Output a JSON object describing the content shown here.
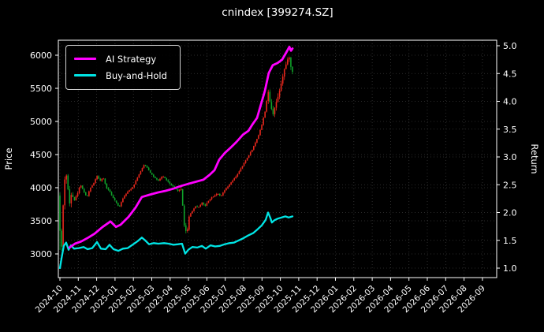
{
  "title": "cnindex [399274.SZ]",
  "legend": {
    "items": [
      {
        "label": "AI Strategy",
        "color": "#ff00ff"
      },
      {
        "label": "Buy-and-Hold",
        "color": "#00e5e5"
      }
    ]
  },
  "chart_data": {
    "type": "mixed",
    "title": "cnindex [399274.SZ]",
    "background": "#000000",
    "text_color": "#ffffff",
    "grid": true,
    "x_unit": "months since 2024-10",
    "x_axis": {
      "tick_labels": [
        "2024-10",
        "2024-11",
        "2024-12",
        "2025-01",
        "2025-02",
        "2025-03",
        "2025-04",
        "2025-05",
        "2025-06",
        "2025-07",
        "2025-08",
        "2025-09",
        "2025-10",
        "2025-11",
        "2025-12",
        "2026-01",
        "2026-02",
        "2026-03",
        "2026-04",
        "2026-05",
        "2026-06",
        "2026-07",
        "2026-08",
        "2026-09"
      ],
      "label_rotation_deg": 45,
      "data_end_x": 12.66
    },
    "left_axis": {
      "label": "Price",
      "ticks": [
        3000,
        3500,
        4000,
        4500,
        5000,
        5500,
        6000
      ],
      "range": [
        2630,
        6225
      ]
    },
    "right_axis": {
      "label": "Return",
      "ticks": [
        1.0,
        1.5,
        2.0,
        2.5,
        3.0,
        3.5,
        4.0,
        4.5,
        5.0
      ],
      "range": [
        0.83,
        5.13
      ]
    },
    "series": [
      {
        "name": "cnindex OHLC",
        "type": "candlestick",
        "axis": "left",
        "up_color": "#e8271c",
        "down_color": "#0fa32a",
        "candle_count": 145,
        "first_candle": {
          "open": 3880,
          "high": 3925,
          "low": 3060,
          "close": 3350
        },
        "close_keypoints": [
          [
            0,
            3350
          ],
          [
            0.09,
            3100
          ],
          [
            0.17,
            3700
          ],
          [
            0.3,
            4300
          ],
          [
            0.39,
            4100
          ],
          [
            0.52,
            3750
          ],
          [
            0.64,
            3950
          ],
          [
            0.77,
            3800
          ],
          [
            0.94,
            3900
          ],
          [
            1.12,
            4050
          ],
          [
            1.29,
            3950
          ],
          [
            1.46,
            3850
          ],
          [
            1.63,
            3980
          ],
          [
            1.8,
            4050
          ],
          [
            2.02,
            4180
          ],
          [
            2.19,
            4100
          ],
          [
            2.36,
            4150
          ],
          [
            2.53,
            4000
          ],
          [
            2.7,
            3950
          ],
          [
            2.88,
            3850
          ],
          [
            3.05,
            3780
          ],
          [
            3.22,
            3700
          ],
          [
            3.39,
            3820
          ],
          [
            3.56,
            3900
          ],
          [
            3.78,
            3960
          ],
          [
            3.99,
            4020
          ],
          [
            4.21,
            4150
          ],
          [
            4.42,
            4260
          ],
          [
            4.59,
            4350
          ],
          [
            4.76,
            4300
          ],
          [
            4.94,
            4220
          ],
          [
            5.15,
            4150
          ],
          [
            5.36,
            4100
          ],
          [
            5.58,
            4180
          ],
          [
            5.79,
            4120
          ],
          [
            6.01,
            4050
          ],
          [
            6.22,
            4000
          ],
          [
            6.44,
            3950
          ],
          [
            6.61,
            3980
          ],
          [
            6.78,
            3400
          ],
          [
            6.91,
            3300
          ],
          [
            7.04,
            3580
          ],
          [
            7.21,
            3650
          ],
          [
            7.38,
            3720
          ],
          [
            7.55,
            3700
          ],
          [
            7.73,
            3780
          ],
          [
            7.9,
            3720
          ],
          [
            8.07,
            3800
          ],
          [
            8.24,
            3850
          ],
          [
            8.41,
            3880
          ],
          [
            8.58,
            3920
          ],
          [
            8.75,
            3860
          ],
          [
            8.93,
            3950
          ],
          [
            9.1,
            4000
          ],
          [
            9.27,
            4060
          ],
          [
            9.44,
            4120
          ],
          [
            9.61,
            4180
          ],
          [
            9.79,
            4260
          ],
          [
            9.96,
            4340
          ],
          [
            10.13,
            4420
          ],
          [
            10.3,
            4500
          ],
          [
            10.47,
            4580
          ],
          [
            10.64,
            4680
          ],
          [
            10.82,
            4800
          ],
          [
            10.99,
            4950
          ],
          [
            11.16,
            5150
          ],
          [
            11.33,
            5450
          ],
          [
            11.46,
            5250
          ],
          [
            11.59,
            5100
          ],
          [
            11.72,
            5250
          ],
          [
            11.85,
            5350
          ],
          [
            11.98,
            5500
          ],
          [
            12.1,
            5650
          ],
          [
            12.23,
            5800
          ],
          [
            12.36,
            5900
          ],
          [
            12.49,
            5980
          ],
          [
            12.58,
            5800
          ],
          [
            12.66,
            5750
          ]
        ]
      },
      {
        "name": "AI Strategy",
        "type": "line",
        "axis": "right",
        "color": "#ff00ff",
        "width": 2.8,
        "points": [
          [
            0.52,
            1.37
          ],
          [
            0.82,
            1.44
          ],
          [
            1.16,
            1.48
          ],
          [
            1.55,
            1.55
          ],
          [
            1.89,
            1.62
          ],
          [
            2.32,
            1.74
          ],
          [
            2.75,
            1.84
          ],
          [
            3.05,
            1.74
          ],
          [
            3.3,
            1.78
          ],
          [
            3.73,
            1.92
          ],
          [
            4.12,
            2.09
          ],
          [
            4.46,
            2.28
          ],
          [
            4.89,
            2.32
          ],
          [
            5.32,
            2.36
          ],
          [
            5.75,
            2.39
          ],
          [
            6.18,
            2.43
          ],
          [
            6.61,
            2.48
          ],
          [
            7.04,
            2.52
          ],
          [
            7.47,
            2.56
          ],
          [
            7.81,
            2.59
          ],
          [
            8.15,
            2.68
          ],
          [
            8.41,
            2.76
          ],
          [
            8.67,
            2.95
          ],
          [
            8.97,
            3.07
          ],
          [
            9.27,
            3.16
          ],
          [
            9.61,
            3.27
          ],
          [
            9.96,
            3.4
          ],
          [
            10.26,
            3.47
          ],
          [
            10.47,
            3.58
          ],
          [
            10.73,
            3.7
          ],
          [
            10.94,
            3.94
          ],
          [
            11.16,
            4.19
          ],
          [
            11.37,
            4.51
          ],
          [
            11.59,
            4.65
          ],
          [
            11.85,
            4.69
          ],
          [
            12.1,
            4.75
          ],
          [
            12.32,
            4.88
          ],
          [
            12.49,
            4.98
          ],
          [
            12.58,
            4.91
          ],
          [
            12.66,
            4.95
          ]
        ]
      },
      {
        "name": "Buy-and-Hold",
        "type": "line",
        "axis": "right",
        "color": "#00e5e5",
        "width": 2.3,
        "points": [
          [
            0,
            1.0
          ],
          [
            0.09,
            1.18
          ],
          [
            0.21,
            1.4
          ],
          [
            0.34,
            1.46
          ],
          [
            0.47,
            1.33
          ],
          [
            0.6,
            1.41
          ],
          [
            0.77,
            1.35
          ],
          [
            1.03,
            1.36
          ],
          [
            1.29,
            1.38
          ],
          [
            1.5,
            1.34
          ],
          [
            1.76,
            1.36
          ],
          [
            2.02,
            1.47
          ],
          [
            2.23,
            1.35
          ],
          [
            2.49,
            1.34
          ],
          [
            2.7,
            1.42
          ],
          [
            2.92,
            1.34
          ],
          [
            3.18,
            1.31
          ],
          [
            3.43,
            1.35
          ],
          [
            3.69,
            1.36
          ],
          [
            3.95,
            1.42
          ],
          [
            4.21,
            1.48
          ],
          [
            4.46,
            1.55
          ],
          [
            4.64,
            1.5
          ],
          [
            4.85,
            1.43
          ],
          [
            5.11,
            1.45
          ],
          [
            5.36,
            1.44
          ],
          [
            5.67,
            1.45
          ],
          [
            5.92,
            1.44
          ],
          [
            6.18,
            1.42
          ],
          [
            6.44,
            1.43
          ],
          [
            6.65,
            1.44
          ],
          [
            6.82,
            1.26
          ],
          [
            6.99,
            1.33
          ],
          [
            7.21,
            1.38
          ],
          [
            7.47,
            1.37
          ],
          [
            7.73,
            1.4
          ],
          [
            7.94,
            1.35
          ],
          [
            8.2,
            1.41
          ],
          [
            8.45,
            1.39
          ],
          [
            8.71,
            1.4
          ],
          [
            8.97,
            1.43
          ],
          [
            9.23,
            1.45
          ],
          [
            9.48,
            1.46
          ],
          [
            9.74,
            1.5
          ],
          [
            10.0,
            1.54
          ],
          [
            10.26,
            1.59
          ],
          [
            10.52,
            1.63
          ],
          [
            10.77,
            1.7
          ],
          [
            10.99,
            1.77
          ],
          [
            11.2,
            1.87
          ],
          [
            11.33,
            2.0
          ],
          [
            11.46,
            1.9
          ],
          [
            11.54,
            1.82
          ],
          [
            11.67,
            1.86
          ],
          [
            11.85,
            1.89
          ],
          [
            12.06,
            1.91
          ],
          [
            12.27,
            1.93
          ],
          [
            12.45,
            1.91
          ],
          [
            12.66,
            1.93
          ]
        ]
      }
    ]
  }
}
